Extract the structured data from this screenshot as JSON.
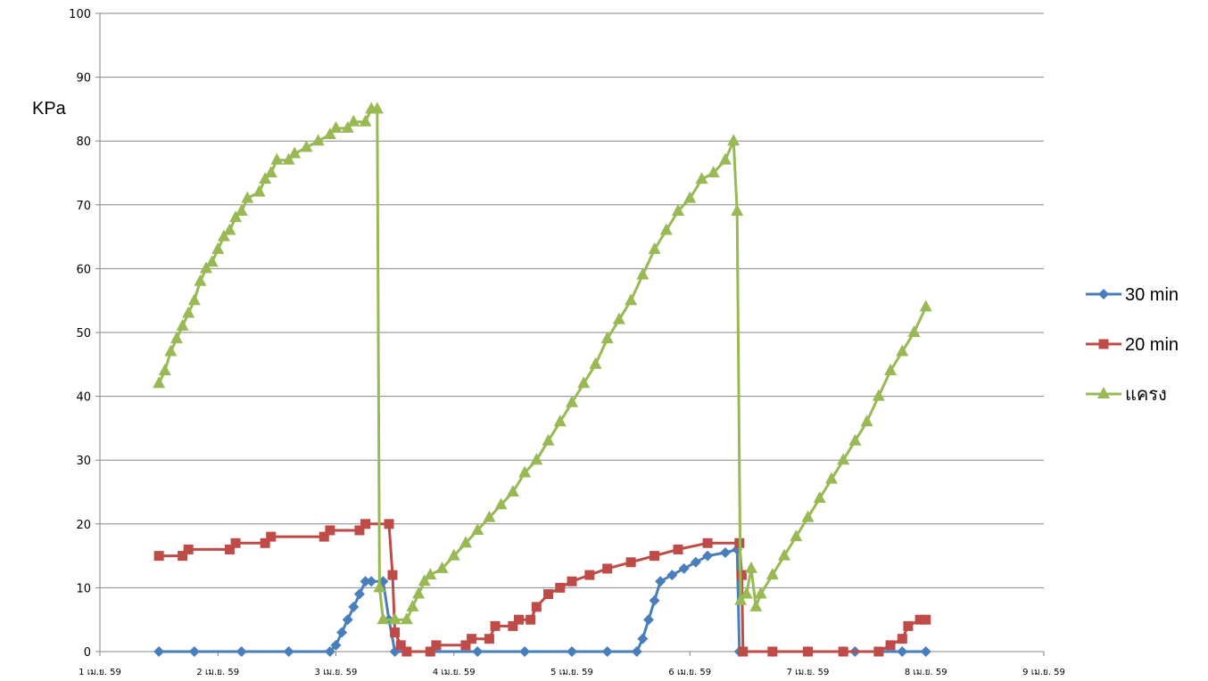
{
  "chart_data": {
    "type": "line",
    "title": "",
    "xlabel": "",
    "ylabel": "KPa",
    "ylim": [
      0,
      100
    ],
    "yticks": [
      0,
      10,
      20,
      30,
      40,
      50,
      60,
      70,
      80,
      90,
      100
    ],
    "xlim": [
      1,
      9
    ],
    "xtick_values": [
      1,
      2,
      3,
      4,
      5,
      6,
      7,
      8,
      9
    ],
    "xtick_labels": [
      "1 เม.ย. 59",
      "2 เม.ย. 59",
      "3 เม.ย. 59",
      "4 เม.ย. 59",
      "5 เม.ย. 59",
      "6 เม.ย. 59",
      "7 เม.ย. 59",
      "8 เม.ย. 59",
      "9 เม.ย. 59"
    ],
    "grid": "horizontal",
    "legend_position": "right",
    "series": [
      {
        "name": "30 min",
        "color": "#4A7EBB",
        "marker": "diamond",
        "points": [
          [
            1.5,
            0
          ],
          [
            1.8,
            0
          ],
          [
            2.2,
            0
          ],
          [
            2.6,
            0
          ],
          [
            2.95,
            0
          ],
          [
            3.0,
            1
          ],
          [
            3.05,
            3
          ],
          [
            3.1,
            5
          ],
          [
            3.15,
            7
          ],
          [
            3.2,
            9
          ],
          [
            3.25,
            11
          ],
          [
            3.3,
            11
          ],
          [
            3.4,
            11
          ],
          [
            3.45,
            5
          ],
          [
            3.5,
            0
          ],
          [
            3.8,
            0
          ],
          [
            4.2,
            0
          ],
          [
            4.6,
            0
          ],
          [
            5.0,
            0
          ],
          [
            5.3,
            0
          ],
          [
            5.55,
            0
          ],
          [
            5.6,
            2
          ],
          [
            5.65,
            5
          ],
          [
            5.7,
            8
          ],
          [
            5.75,
            11
          ],
          [
            5.85,
            12
          ],
          [
            5.95,
            13
          ],
          [
            6.05,
            14
          ],
          [
            6.15,
            15
          ],
          [
            6.3,
            15.5
          ],
          [
            6.4,
            16
          ],
          [
            6.42,
            0
          ],
          [
            6.7,
            0
          ],
          [
            7.0,
            0
          ],
          [
            7.4,
            0
          ],
          [
            7.8,
            0
          ],
          [
            8.0,
            0
          ]
        ]
      },
      {
        "name": "20 min",
        "color": "#BE4B48",
        "marker": "square",
        "points": [
          [
            1.5,
            15
          ],
          [
            1.7,
            15
          ],
          [
            1.75,
            16
          ],
          [
            2.1,
            16
          ],
          [
            2.15,
            17
          ],
          [
            2.4,
            17
          ],
          [
            2.45,
            18
          ],
          [
            2.9,
            18
          ],
          [
            2.95,
            19
          ],
          [
            3.2,
            19
          ],
          [
            3.25,
            20
          ],
          [
            3.45,
            20
          ],
          [
            3.48,
            12
          ],
          [
            3.5,
            3
          ],
          [
            3.55,
            1
          ],
          [
            3.6,
            0
          ],
          [
            3.8,
            0
          ],
          [
            3.85,
            1
          ],
          [
            4.1,
            1
          ],
          [
            4.15,
            2
          ],
          [
            4.3,
            2
          ],
          [
            4.35,
            4
          ],
          [
            4.5,
            4
          ],
          [
            4.55,
            5
          ],
          [
            4.65,
            5
          ],
          [
            4.7,
            7
          ],
          [
            4.8,
            9
          ],
          [
            4.9,
            10
          ],
          [
            5.0,
            11
          ],
          [
            5.15,
            12
          ],
          [
            5.3,
            13
          ],
          [
            5.5,
            14
          ],
          [
            5.7,
            15
          ],
          [
            5.9,
            16
          ],
          [
            6.15,
            17
          ],
          [
            6.42,
            17
          ],
          [
            6.44,
            12
          ],
          [
            6.45,
            0
          ],
          [
            6.7,
            0
          ],
          [
            7.0,
            0
          ],
          [
            7.3,
            0
          ],
          [
            7.6,
            0
          ],
          [
            7.7,
            1
          ],
          [
            7.8,
            2
          ],
          [
            7.85,
            4
          ],
          [
            7.95,
            5
          ],
          [
            8.0,
            5
          ]
        ]
      },
      {
        "name": "แครง",
        "color": "#98B954",
        "marker": "triangle",
        "points": [
          [
            1.5,
            42
          ],
          [
            1.55,
            44
          ],
          [
            1.6,
            47
          ],
          [
            1.65,
            49
          ],
          [
            1.7,
            51
          ],
          [
            1.75,
            53
          ],
          [
            1.8,
            55
          ],
          [
            1.85,
            58
          ],
          [
            1.9,
            60
          ],
          [
            1.95,
            61
          ],
          [
            2.0,
            63
          ],
          [
            2.05,
            65
          ],
          [
            2.1,
            66
          ],
          [
            2.15,
            68
          ],
          [
            2.2,
            69
          ],
          [
            2.25,
            71
          ],
          [
            2.35,
            72
          ],
          [
            2.4,
            74
          ],
          [
            2.45,
            75
          ],
          [
            2.5,
            77
          ],
          [
            2.6,
            77
          ],
          [
            2.65,
            78
          ],
          [
            2.75,
            79
          ],
          [
            2.85,
            80
          ],
          [
            2.95,
            81
          ],
          [
            3.0,
            82
          ],
          [
            3.1,
            82
          ],
          [
            3.15,
            83
          ],
          [
            3.25,
            83
          ],
          [
            3.3,
            85
          ],
          [
            3.35,
            85
          ],
          [
            3.37,
            10
          ],
          [
            3.4,
            5
          ],
          [
            3.5,
            5
          ],
          [
            3.6,
            5
          ],
          [
            3.65,
            7
          ],
          [
            3.7,
            9
          ],
          [
            3.75,
            11
          ],
          [
            3.8,
            12
          ],
          [
            3.9,
            13
          ],
          [
            4.0,
            15
          ],
          [
            4.1,
            17
          ],
          [
            4.2,
            19
          ],
          [
            4.3,
            21
          ],
          [
            4.4,
            23
          ],
          [
            4.5,
            25
          ],
          [
            4.6,
            28
          ],
          [
            4.7,
            30
          ],
          [
            4.8,
            33
          ],
          [
            4.9,
            36
          ],
          [
            5.0,
            39
          ],
          [
            5.1,
            42
          ],
          [
            5.2,
            45
          ],
          [
            5.3,
            49
          ],
          [
            5.4,
            52
          ],
          [
            5.5,
            55
          ],
          [
            5.6,
            59
          ],
          [
            5.7,
            63
          ],
          [
            5.8,
            66
          ],
          [
            5.9,
            69
          ],
          [
            6.0,
            71
          ],
          [
            6.1,
            74
          ],
          [
            6.2,
            75
          ],
          [
            6.3,
            77
          ],
          [
            6.37,
            80
          ],
          [
            6.4,
            69
          ],
          [
            6.43,
            8
          ],
          [
            6.48,
            9
          ],
          [
            6.52,
            13
          ],
          [
            6.56,
            7
          ],
          [
            6.6,
            9
          ],
          [
            6.7,
            12
          ],
          [
            6.8,
            15
          ],
          [
            6.9,
            18
          ],
          [
            7.0,
            21
          ],
          [
            7.1,
            24
          ],
          [
            7.2,
            27
          ],
          [
            7.3,
            30
          ],
          [
            7.4,
            33
          ],
          [
            7.5,
            36
          ],
          [
            7.6,
            40
          ],
          [
            7.7,
            44
          ],
          [
            7.8,
            47
          ],
          [
            7.9,
            50
          ],
          [
            8.0,
            54
          ]
        ]
      }
    ]
  }
}
